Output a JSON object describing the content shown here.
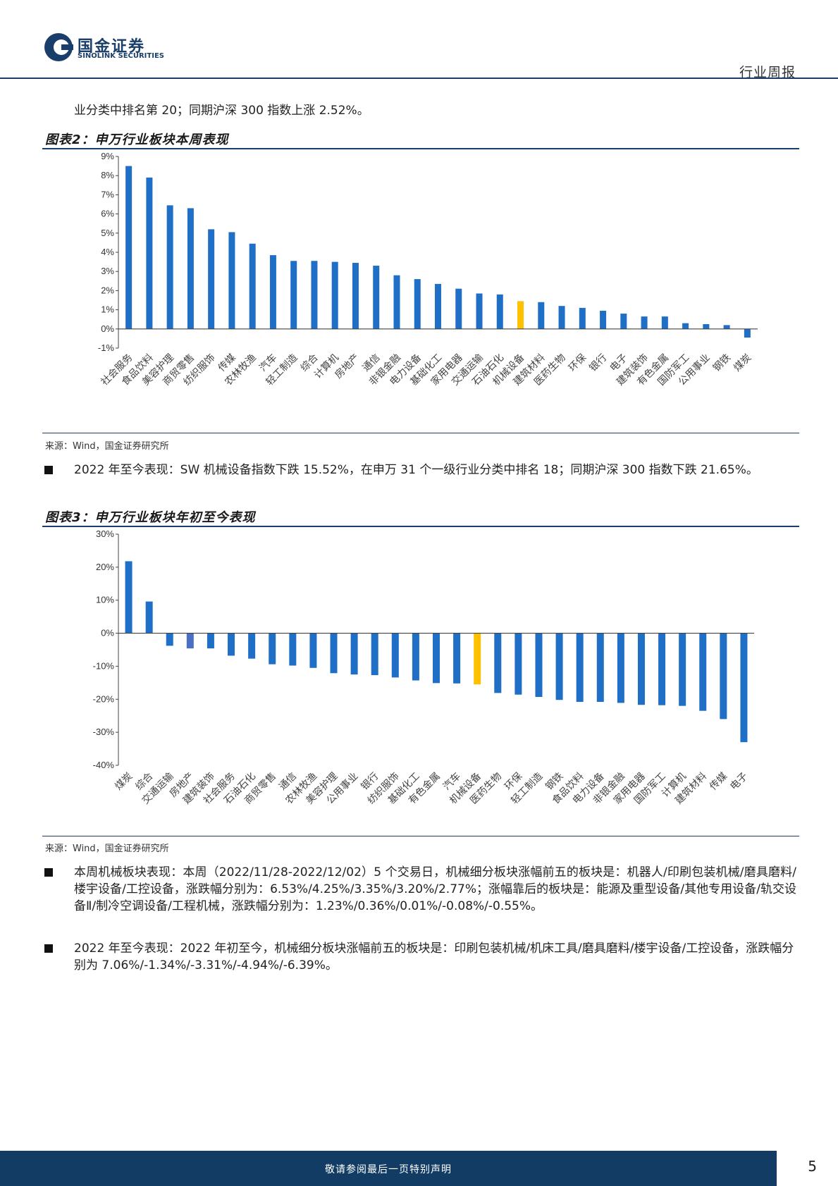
{
  "header": {
    "logo_cn": "国金证券",
    "logo_en": "SINOLINK SECURITIES",
    "report_type": "行业周报"
  },
  "intro_tail": "业分类中排名第 20；同期沪深 300 指数上涨 2.52%。",
  "figure2": {
    "title": "图表2：申万行业板块本周表现",
    "source": "来源：Wind，国金证券研究所"
  },
  "bullet_ytd_sw": "2022 年至今表现：SW 机械设备指数下跌 15.52%，在申万 31 个一级行业分类中排名 18；同期沪深 300 指数下跌 21.65%。",
  "figure3": {
    "title": "图表3：申万行业板块年初至今表现",
    "source": "来源：Wind，国金证券研究所"
  },
  "bullet_week_sub": "本周机械板块表现：本周（2022/11/28-2022/12/02）5 个交易日，机械细分板块涨幅前五的板块是：机器人/印刷包装机械/磨具磨料/楼宇设备/工控设备，涨跌幅分别为：6.53%/4.25%/3.35%/3.20%/2.77%；涨幅靠后的板块是：能源及重型设备/其他专用设备/轨交设备Ⅱ/制冷空调设备/工程机械，涨跌幅分别为：1.23%/0.36%/0.01%/-0.08%/-0.55%。",
  "bullet_ytd_sub": "2022 年至今表现：2022 年初至今，机械细分板块涨幅前五的板块是：印刷包装机械/机床工具/磨具磨料/楼宇设备/工控设备，涨跌幅分别为 7.06%/-1.34%/-3.31%/-4.94%/-6.39%。",
  "footer": {
    "disclaimer": "敬请参阅最后一页特别声明",
    "page": "5"
  },
  "colors": {
    "bar": "#1f6fc7",
    "highlight": "#ffc000",
    "alt": "#4a6fc4",
    "brand": "#123c63"
  },
  "chart_data": [
    {
      "type": "bar",
      "title": "",
      "ylim": [
        -1,
        9
      ],
      "yticks": [
        "9%",
        "8%",
        "7%",
        "6%",
        "5%",
        "4%",
        "3%",
        "2%",
        "1%",
        "0%",
        "-1%"
      ],
      "tick_values": [
        9,
        8,
        7,
        6,
        5,
        4,
        3,
        2,
        1,
        0,
        -1
      ],
      "highlight": "机械设备",
      "categories": [
        "社会服务",
        "食品饮料",
        "美容护理",
        "商贸零售",
        "纺织服饰",
        "传媒",
        "农林牧渔",
        "汽车",
        "轻工制造",
        "综合",
        "计算机",
        "房地产",
        "通信",
        "非银金融",
        "电力设备",
        "基础化工",
        "家用电器",
        "交通运输",
        "石油石化",
        "机械设备",
        "建筑材料",
        "医药生物",
        "环保",
        "银行",
        "电子",
        "建筑装饰",
        "有色金属",
        "国防军工",
        "公用事业",
        "钢铁",
        "煤炭"
      ],
      "values": [
        8.5,
        7.9,
        6.45,
        6.3,
        5.2,
        5.05,
        4.45,
        3.85,
        3.55,
        3.55,
        3.5,
        3.45,
        3.3,
        2.8,
        2.6,
        2.35,
        2.1,
        1.85,
        1.8,
        1.45,
        1.4,
        1.2,
        1.1,
        0.95,
        0.8,
        0.65,
        0.65,
        0.3,
        0.25,
        0.2,
        -0.45
      ],
      "grid": false,
      "legend": "none"
    },
    {
      "type": "bar",
      "title": "",
      "ylim": [
        -40,
        30
      ],
      "yticks": [
        "30%",
        "20%",
        "10%",
        "0%",
        "-10%",
        "-20%",
        "-30%",
        "-40%"
      ],
      "tick_values": [
        30,
        20,
        10,
        0,
        -10,
        -20,
        -30,
        -40
      ],
      "highlight": "机械设备",
      "alt_highlight": "房地产",
      "categories": [
        "煤炭",
        "综合",
        "交通运输",
        "房地产",
        "建筑装饰",
        "社会服务",
        "石油石化",
        "商贸零售",
        "通信",
        "农林牧渔",
        "美容护理",
        "公用事业",
        "银行",
        "纺织服饰",
        "基础化工",
        "有色金属",
        "汽车",
        "机械设备",
        "医药生物",
        "环保",
        "轻工制造",
        "钢铁",
        "食品饮料",
        "电力设备",
        "非银金融",
        "家用电器",
        "国防军工",
        "计算机",
        "建筑材料",
        "传媒",
        "电子"
      ],
      "values": [
        21.8,
        9.6,
        -3.8,
        -4.6,
        -4.6,
        -6.8,
        -7.7,
        -9.4,
        -9.8,
        -10.5,
        -12.1,
        -12.5,
        -12.7,
        -13.4,
        -14.3,
        -15.1,
        -15.2,
        -15.5,
        -18.1,
        -18.6,
        -19.3,
        -20.2,
        -20.8,
        -20.8,
        -21.1,
        -21.7,
        -21.8,
        -22.0,
        -23.5,
        -26.0,
        -33.0
      ],
      "grid": false,
      "legend": "none"
    }
  ]
}
